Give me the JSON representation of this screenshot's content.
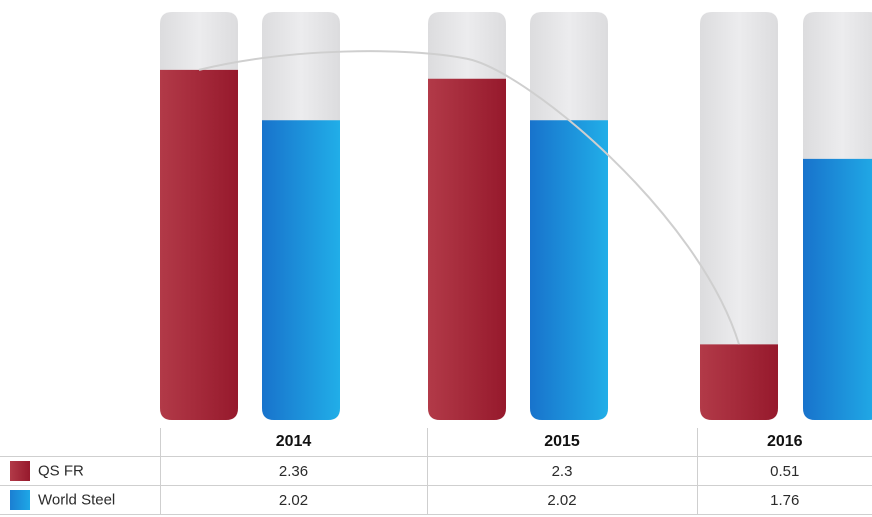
{
  "chart_data": {
    "type": "bar",
    "categories": [
      "2014",
      "2015",
      "2016"
    ],
    "series": [
      {
        "name": "QS FR",
        "values": [
          2.36,
          2.3,
          0.51
        ]
      },
      {
        "name": "World Steel",
        "values": [
          2.02,
          2.02,
          1.76
        ]
      }
    ],
    "ylim": [
      0,
      2.75
    ],
    "colors": {
      "QS FR": "#a21f33",
      "World Steel": "#0f8fd9",
      "track": "#e6e6e8",
      "trend": "#cccccc"
    },
    "trend_line": "QS FR",
    "table": {
      "header": [
        "",
        "2014",
        "2015",
        "2016"
      ],
      "rows": [
        {
          "series": "QS FR",
          "values": [
            "2.36",
            "2.3",
            "0.51"
          ]
        },
        {
          "series": "World Steel",
          "values": [
            "2.02",
            "2.02",
            "1.76"
          ]
        }
      ]
    }
  }
}
